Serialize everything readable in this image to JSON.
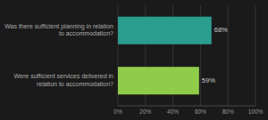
{
  "chart_data": {
    "type": "bar",
    "orientation": "horizontal",
    "categories": [
      "Was there sufficient planning in relation\nto accommodation?",
      "Were sufficient services delivered in\nrelation to accommodation?"
    ],
    "values": [
      68,
      59
    ],
    "value_labels": [
      "68%",
      "59%"
    ],
    "data_labels": true,
    "colors": [
      "#2a9d8f",
      "#8fcc4a"
    ],
    "xlim": [
      0,
      100
    ],
    "xticks": [
      {
        "value": 0,
        "label": "0%"
      },
      {
        "value": 20,
        "label": "20%"
      },
      {
        "value": 40,
        "label": "40%"
      },
      {
        "value": 60,
        "label": "60%"
      },
      {
        "value": 80,
        "label": "80%"
      },
      {
        "value": 100,
        "label": "100%"
      }
    ],
    "grid": true
  }
}
